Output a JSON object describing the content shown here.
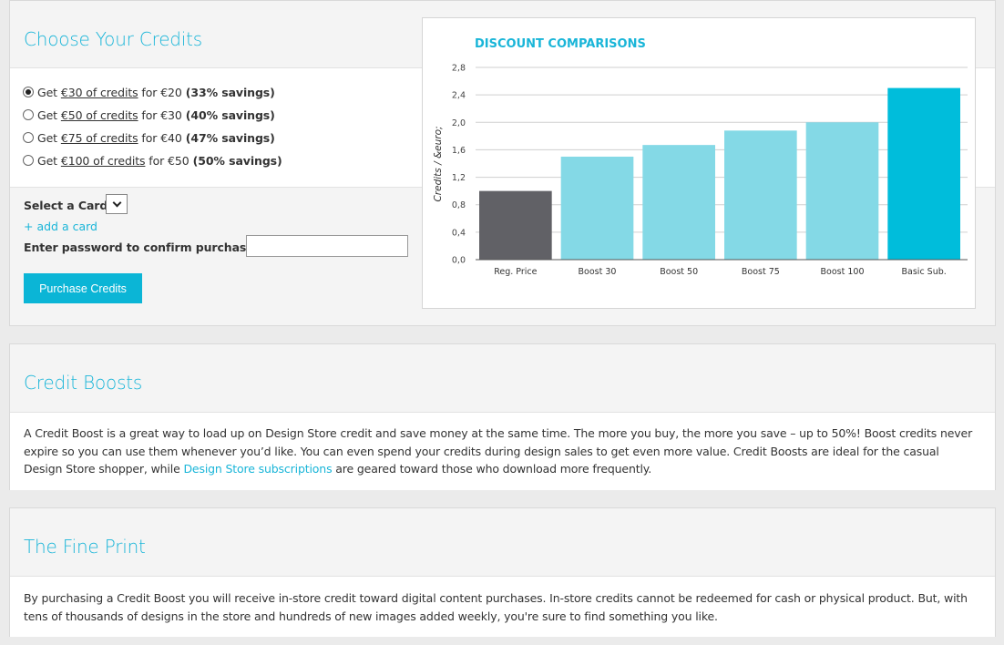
{
  "credits": {
    "title": "Choose Your Credits",
    "options": [
      {
        "selected": true,
        "pre": "Get ",
        "amount": "€30 of credits",
        "mid": " for €20",
        "savings": "(33% savings)"
      },
      {
        "selected": false,
        "pre": "Get ",
        "amount": "€50 of credits",
        "mid": " for €30",
        "savings": "(40% savings)"
      },
      {
        "selected": false,
        "pre": "Get ",
        "amount": "€75 of credits",
        "mid": " for €40",
        "savings": "(47% savings)"
      },
      {
        "selected": false,
        "pre": "Get ",
        "amount": "€100 of credits",
        "mid": " for €50",
        "savings": "(50% savings)"
      }
    ],
    "select_card_label": "Select a Card",
    "add_card_label": "+ add a card",
    "password_label": "Enter password to confirm purchase",
    "password_value": "",
    "purchase_button": "Purchase Credits"
  },
  "chart_data": {
    "type": "bar",
    "title": "DISCOUNT COMPARISONS",
    "ylabel": "Credits / &euro;",
    "xlabel": "",
    "ylim": [
      0,
      2.8
    ],
    "yticks": [
      "0,0",
      "0,4",
      "0,8",
      "1,2",
      "1,6",
      "2,0",
      "2,4",
      "2,8"
    ],
    "categories": [
      "Reg. Price",
      "Boost 30",
      "Boost 50",
      "Boost 75",
      "Boost 100",
      "Basic Sub."
    ],
    "values": [
      1.0,
      1.5,
      1.67,
      1.88,
      2.0,
      2.5
    ],
    "colors": [
      "#616166",
      "#84d9e6",
      "#84d9e6",
      "#84d9e6",
      "#84d9e6",
      "#00bddb"
    ],
    "grid": true,
    "legend": "none"
  },
  "boosts": {
    "title": "Credit Boosts",
    "text_before_link": "A Credit Boost is a great way to load up on Design Store credit and save money at the same time. The more you buy, the more you save – up to 50%! Boost credits never expire so you can use them whenever you’d like. You can even spend your credits during design sales to get even more value. Credit Boosts are ideal for the casual Design Store shopper, while ",
    "link_text": "Design Store subscriptions",
    "text_after_link": " are geared toward those who download more frequently."
  },
  "fineprint": {
    "title": "The Fine Print",
    "text": "By purchasing a Credit Boost you will receive in-store credit toward digital content purchases. In-store credits cannot be redeemed for cash or physical product. But, with tens of thousands of designs in the store and hundreds of new images added weekly, you're sure to find something you like."
  },
  "colors": {
    "accent": "#19b5d8",
    "button": "#0bb5d6",
    "panel_bg": "#f4f4f4",
    "page_bg": "#ebebeb"
  }
}
